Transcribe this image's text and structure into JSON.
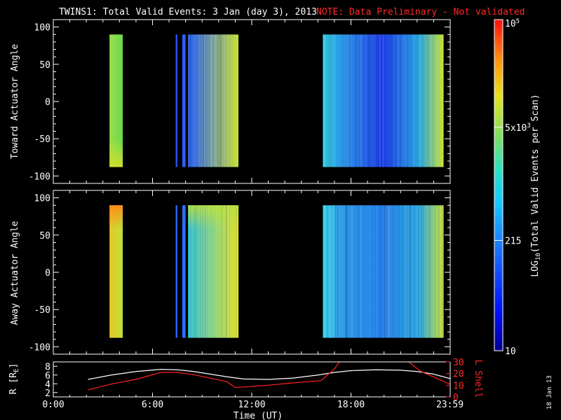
{
  "header": {
    "title": "TWINS1: Total Valid Events:  3 Jan (day   3), 2013",
    "note": "NOTE: Data Preliminary - Not validated"
  },
  "colorbar": {
    "label": "LOG10(Total Valid Events per Scan)",
    "label_base": "LOG",
    "label_sub": "10",
    "label_rest": "(Total Valid Events per Scan)",
    "ticks": [
      {
        "label": "10^5",
        "value": 100000
      },
      {
        "label": "5x10^3",
        "value": 5000
      },
      {
        "label": "215",
        "value": 215
      },
      {
        "label": "10",
        "value": 10
      }
    ],
    "range": [
      10,
      100000
    ],
    "scale": "log"
  },
  "footer": {
    "date_stamp": "18 Jan 13"
  },
  "chart_data": [
    {
      "type": "heatmap",
      "ylabel": "Toward Actuator Angle",
      "ylim": [
        -110,
        110
      ],
      "yticks": [
        100,
        50,
        0,
        -50,
        -100
      ],
      "xlim": [
        0,
        24
      ],
      "x_unit": "hours UT",
      "y_extent": [
        -88,
        90
      ],
      "blocks": [
        {
          "t_start": 3.4,
          "t_end": 4.2,
          "start_color": "#9ae04a",
          "end_color": "#6cd84e",
          "bottom_tint": "#d8e02a"
        },
        {
          "t_start": 7.4,
          "t_end": 7.5,
          "start_color": "#2a55ff",
          "end_color": "#2a55ff"
        },
        {
          "t_start": 7.8,
          "t_end": 8.0,
          "start_color": "#2a60ff",
          "end_color": "#2a60ff"
        },
        {
          "t_start": 8.15,
          "t_end": 11.2,
          "start_color": "#2560f5",
          "end_color": "#c8e038"
        },
        {
          "t_start": 16.3,
          "t_end": 23.6,
          "start_color": "#35d8e6",
          "end_color": "#c8e035",
          "mid_color": "#1a3ae8"
        }
      ]
    },
    {
      "type": "heatmap",
      "ylabel": "Away Actuator Angle",
      "ylim": [
        -110,
        110
      ],
      "yticks": [
        100,
        50,
        0,
        -50,
        -100
      ],
      "xlim": [
        0,
        24
      ],
      "x_unit": "hours UT",
      "y_extent": [
        -88,
        90
      ],
      "blocks": [
        {
          "t_start": 3.4,
          "t_end": 4.2,
          "start_color": "#e8c828",
          "end_color": "#bfe03a",
          "top_tint": "#ff8a1a"
        },
        {
          "t_start": 7.4,
          "t_end": 7.5,
          "start_color": "#2a6aff",
          "end_color": "#2a6aff"
        },
        {
          "t_start": 7.8,
          "t_end": 8.0,
          "start_color": "#2a70ff",
          "end_color": "#2a70ff"
        },
        {
          "t_start": 8.15,
          "t_end": 11.2,
          "start_color": "#35c8d8",
          "end_color": "#e2e028",
          "top_tint": "#b8e040"
        },
        {
          "t_start": 16.3,
          "t_end": 23.6,
          "start_color": "#3ad4e8",
          "end_color": "#c8e035",
          "mid_color": "#2880ea"
        }
      ]
    },
    {
      "type": "line",
      "ylabel": "R [RE]",
      "ylabel_base": "R [R",
      "ylabel_sub": "E",
      "ylabel_rest": "]",
      "ylabel_right": "L Shell",
      "ylim": [
        1,
        9
      ],
      "yticks": [
        2,
        4,
        6,
        8
      ],
      "ylim_right": [
        0,
        30
      ],
      "yticks_right": [
        0,
        10,
        20,
        30
      ],
      "xlabel": "Time (UT)",
      "xticks": [
        {
          "value": 0,
          "label": "0:00"
        },
        {
          "value": 6,
          "label": "6:00"
        },
        {
          "value": 12,
          "label": "12:00"
        },
        {
          "value": 18,
          "label": "18:00"
        },
        {
          "value": 23.98,
          "label": "23:59"
        }
      ],
      "series": [
        {
          "axis": "left",
          "color": "#ffffff",
          "x": [
            2.1,
            3.5,
            5.0,
            6.5,
            7.5,
            8.5,
            9.5,
            10.5,
            11.5,
            13.0,
            14.5,
            16.0,
            17.0,
            18.0,
            19.5,
            21.0,
            22.0,
            23.0,
            23.98
          ],
          "y": [
            5.0,
            6.0,
            6.8,
            7.3,
            7.2,
            6.8,
            6.2,
            5.6,
            5.1,
            5.0,
            5.3,
            6.0,
            6.6,
            7.0,
            7.2,
            7.1,
            6.8,
            6.2,
            5.2
          ]
        },
        {
          "axis": "right",
          "color": "#ff2020",
          "segments": [
            {
              "x": [
                2.1,
                3.5,
                5.0,
                6.5,
                7.5,
                8.5,
                9.5,
                10.5,
                11.0,
                13.0,
                14.5,
                16.2,
                17.0,
                17.3
              ],
              "y": [
                6,
                11,
                15,
                21,
                21,
                19,
                16,
                13,
                8,
                10,
                12,
                14,
                24,
                30
              ]
            },
            {
              "x": [
                21.5,
                22.2,
                23.0,
                23.98
              ],
              "y": [
                30,
                22,
                17,
                11
              ]
            }
          ]
        }
      ]
    }
  ]
}
